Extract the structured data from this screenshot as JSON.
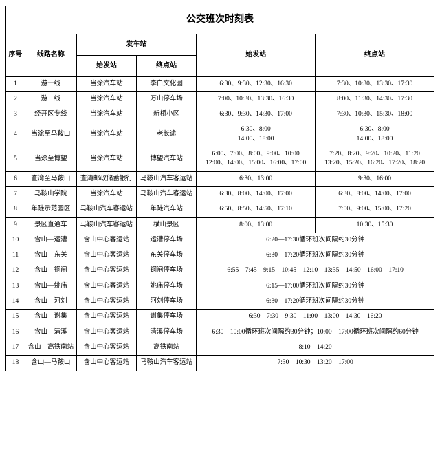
{
  "title": "公交班次时刻表",
  "headers": {
    "seq": "序号",
    "route": "线路名称",
    "dep_group": "发车站",
    "dep_start": "始发站",
    "dep_end": "终点站",
    "time_start": "始发站",
    "time_end": "终点站"
  },
  "rows": [
    {
      "seq": "1",
      "route": "游一线",
      "dep_start": "当涂汽车站",
      "dep_end": "李白文化园",
      "t1": "6:30、9:30、12:30、16:30",
      "t2": "7:30、10:30、13:30、17:30"
    },
    {
      "seq": "2",
      "route": "游二线",
      "dep_start": "当涂汽车站",
      "dep_end": "万山停车场",
      "t1": "7:00、10:30、13:30、16:30",
      "t2": "8:00、11:30、14:30、17:30"
    },
    {
      "seq": "3",
      "route": "经开区专线",
      "dep_start": "当涂汽车站",
      "dep_end": "新桥小区",
      "t1": "6:30、9:30、14:30、17:00",
      "t2": "7:30、10:30、15:30、18:00"
    },
    {
      "seq": "4",
      "route": "当涂至马鞍山",
      "dep_start": "当涂汽车站",
      "dep_end": "老长途",
      "t1": "6:30、8:00\n14:00、18:00",
      "t2": "6:30、8:00\n14:00、18:00"
    },
    {
      "seq": "5",
      "route": "当涂至博望",
      "dep_start": "当涂汽车站",
      "dep_end": "博望汽车站",
      "t1": "6:00、7:00、8:00、9:00、10:00\n12:00、14:00、15:00、16:00、17:00",
      "t2": "7:20、8:20、9:20、10:20、11:20\n13:20、15:20、16:20、17:20、18:20"
    },
    {
      "seq": "6",
      "route": "查湾至马鞍山",
      "dep_start": "查湾邮政储蓄银行",
      "dep_end": "马鞍山汽车客运站",
      "t1": "6:30、13:00",
      "t2": "9:30、16:00"
    },
    {
      "seq": "7",
      "route": "马鞍山学院",
      "dep_start": "当涂汽车站",
      "dep_end": "马鞍山汽车客运站",
      "t1": "6:30、8:00、14:00、17:00",
      "t2": "6:30、8:00、14:00、17:00"
    },
    {
      "seq": "8",
      "route": "年陡示范园区",
      "dep_start": "马鞍山汽车客运站",
      "dep_end": "年陡汽车站",
      "t1": "6:50、8:50、14:50、17:10",
      "t2": "7:00、9:00、15:00、17:20"
    },
    {
      "seq": "9",
      "route": "景区直通车",
      "dep_start": "马鞍山汽车客运站",
      "dep_end": "横山景区",
      "t1": "8:00、13:00",
      "t2": "10:30、15:30"
    },
    {
      "seq": "10",
      "route": "含山—运漕",
      "dep_start": "含山中心客运站",
      "dep_end": "运漕停车场",
      "merged": "6:20—17:30循环班次间隔约30分钟"
    },
    {
      "seq": "11",
      "route": "含山—东关",
      "dep_start": "含山中心客运站",
      "dep_end": "东关停车场",
      "merged": "6:30—17:20循环班次间隔约30分钟"
    },
    {
      "seq": "12",
      "route": "含山—铜闸",
      "dep_start": "含山中心客运站",
      "dep_end": "铜闸停车场",
      "merged": "6:55　7:45　9:15　10:45　12:10　13:35　14:50　16:00　17:10"
    },
    {
      "seq": "13",
      "route": "含山—姚庙",
      "dep_start": "含山中心客运站",
      "dep_end": "姚庙停车场",
      "merged": "6:15—17:00循环班次间隔约30分钟"
    },
    {
      "seq": "14",
      "route": "含山—河刘",
      "dep_start": "含山中心客运站",
      "dep_end": "河刘停车场",
      "merged": "6:30—17:20循环班次间隔约30分钟"
    },
    {
      "seq": "15",
      "route": "含山—谢集",
      "dep_start": "含山中心客运站",
      "dep_end": "谢集停车场",
      "merged": "6:30　7:30　9:30　11:00　13:00　14:30　16:20"
    },
    {
      "seq": "16",
      "route": "含山—清溪",
      "dep_start": "含山中心客运站",
      "dep_end": "清溪停车场",
      "merged": "6:30—10:00循环班次间隔约30分钟；10:00—17:00循环班次间隔约60分钟"
    },
    {
      "seq": "17",
      "route": "含山—高铁南站",
      "dep_start": "含山中心客运站",
      "dep_end": "高铁南站",
      "merged": "8:10　14:20"
    },
    {
      "seq": "18",
      "route": "含山—马鞍山",
      "dep_start": "含山中心客运站",
      "dep_end": "马鞍山汽车客运站",
      "merged": "7:30　10:30　13:20　17:00"
    }
  ],
  "style": {
    "background": "#ffffff",
    "border_color": "#000000",
    "text_color": "#000000",
    "title_fontsize": 14,
    "header_fontsize": 10,
    "body_fontsize": 9.5
  }
}
